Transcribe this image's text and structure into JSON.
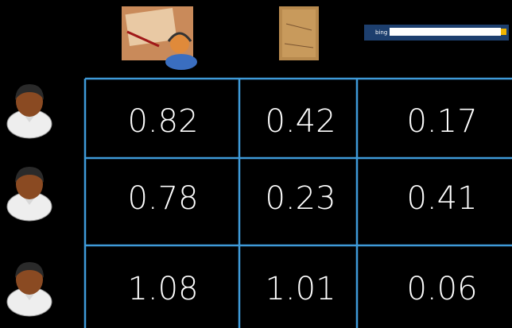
{
  "table": {
    "rows": [
      [
        "0.82",
        "0.42",
        "0.17"
      ],
      [
        "0.78",
        "0.23",
        "0.41"
      ],
      [
        "1.08",
        "1.01",
        "0.06"
      ]
    ]
  },
  "header": {
    "search_logo": "bing"
  }
}
